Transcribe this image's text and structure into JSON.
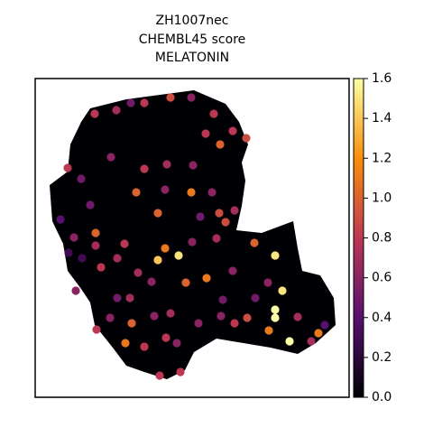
{
  "chart_data": {
    "type": "scatter",
    "title": [
      "ZH1007nec",
      "CHEMBL45 score",
      "MELATONIN"
    ],
    "x": [
      112,
      173,
      67,
      144,
      136,
      159,
      190,
      167,
      243,
      266,
      274,
      266,
      266,
      282,
      259,
      314,
      107,
      100,
      150,
      173,
      66,
      90,
      106,
      121,
      198,
      219,
      234,
      205,
      189,
      36,
      51,
      84,
      121,
      146,
      175,
      144,
      136,
      204,
      211,
      221,
      196,
      28,
      43,
      37,
      52,
      67,
      73,
      91,
      114,
      129,
      105,
      91,
      83,
      68,
      132,
      150,
      157,
      121,
      138,
      161,
      181,
      206,
      221,
      235,
      244,
      258,
      291,
      306,
      321,
      45,
      61,
      201,
      174,
      183,
      208,
      99,
      219,
      145
    ],
    "y": [
      227,
      227,
      182,
      165,
      152,
      157,
      132,
      127,
      171,
      157,
      118,
      97,
      88,
      62,
      74,
      71,
      82,
      60,
      332,
      332,
      314,
      318,
      326,
      326,
      314,
      295,
      287,
      280,
      292,
      254,
      242,
      266,
      253,
      258,
      257,
      230,
      204,
      204,
      194,
      207,
      227,
      197,
      177,
      160,
      154,
      168,
      144,
      154,
      138,
      128,
      110,
      110,
      88,
      75,
      90,
      93,
      60,
      56,
      24,
      28,
      82,
      90,
      82,
      88,
      110,
      127,
      89,
      62,
      80,
      118,
      213,
      176,
      172,
      200,
      108,
      170,
      140,
      66
    ],
    "values": [
      1.0,
      1.1,
      1.0,
      1.1,
      1.4,
      1.5,
      1.1,
      1.0,
      1.0,
      1.5,
      1.5,
      1.6,
      1.6,
      1.6,
      1.1,
      1.1,
      1.0,
      1.1,
      0.9,
      0.6,
      0.8,
      0.7,
      0.5,
      0.8,
      0.8,
      0.8,
      0.9,
      1.0,
      0.8,
      0.8,
      0.5,
      0.6,
      0.8,
      0.7,
      0.6,
      0.6,
      1.0,
      0.9,
      0.9,
      0.7,
      0.6,
      0.4,
      0.6,
      0.3,
      0.3,
      0.7,
      0.8,
      0.7,
      0.7,
      0.6,
      0.7,
      0.5,
      0.6,
      0.8,
      0.6,
      0.7,
      0.6,
      0.8,
      0.8,
      0.8,
      0.6,
      0.6,
      0.8,
      0.9,
      0.5,
      0.6,
      0.7,
      0.7,
      0.4,
      0.6,
      0.5,
      0.7,
      0.6,
      0.5,
      0.5,
      0.8,
      0.6,
      0.8
    ],
    "xlim": [
      0,
      348
    ],
    "ylim": [
      0,
      353
    ],
    "colormap": "inferno",
    "clim": [
      0,
      1.6
    ],
    "cticks": [
      {
        "value": 0,
        "label": "0.0"
      },
      {
        "value": 0.2,
        "label": "0.2"
      },
      {
        "value": 0.4,
        "label": "0.4"
      },
      {
        "value": 0.6,
        "label": "0.6"
      },
      {
        "value": 0.8,
        "label": "0.8"
      },
      {
        "value": 1.0,
        "label": "1.0"
      },
      {
        "value": 1.2,
        "label": "1.2"
      },
      {
        "value": 1.4,
        "label": "1.4"
      },
      {
        "value": 1.6,
        "label": "1.6"
      }
    ]
  }
}
